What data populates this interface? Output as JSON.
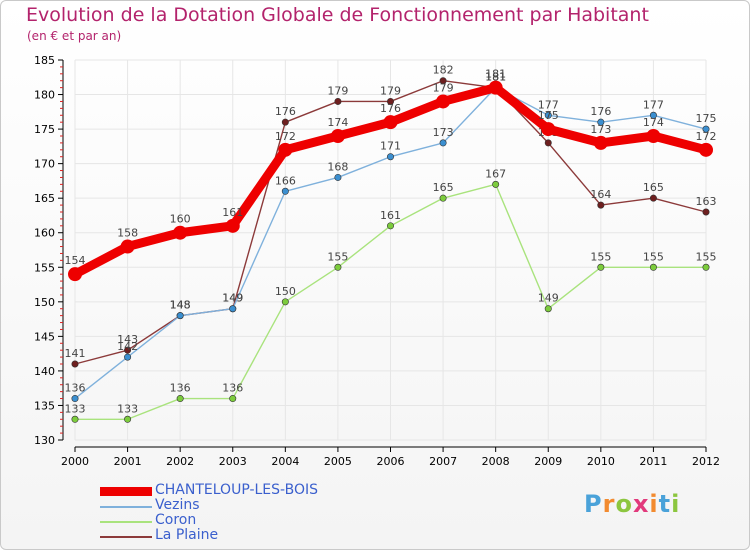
{
  "header": {
    "title": "Evolution de la Dotation Globale de Fonctionnement par Habitant",
    "subtitle": "(en € et par an)"
  },
  "logo": {
    "text": "Proxiti"
  },
  "colors": {
    "title": "#b3236c",
    "axis": "#000000",
    "grid": "#e6e6e6",
    "labels": "#444444"
  },
  "chart_data": {
    "type": "line",
    "title": "Evolution de la Dotation Globale de Fonctionnement par Habitant",
    "subtitle": "(en € et par an)",
    "x": [
      "2000",
      "2001",
      "2002",
      "2003",
      "2004",
      "2005",
      "2006",
      "2007",
      "2008",
      "2009",
      "2010",
      "2011",
      "2012"
    ],
    "ylim": [
      130,
      185
    ],
    "yticks": [
      130,
      135,
      140,
      145,
      150,
      155,
      160,
      165,
      170,
      175,
      180,
      185
    ],
    "grid": true,
    "legend_position": "bottom-left",
    "series": [
      {
        "name": "CHANTELOUP-LES-BOIS",
        "color": "#ee0000",
        "width": 9,
        "marker": 7,
        "values": [
          154,
          158,
          160,
          161,
          172,
          174,
          176,
          179,
          181,
          175,
          173,
          174,
          172
        ]
      },
      {
        "name": "Vezins",
        "color": "#7fb1dc",
        "width": 1.4,
        "marker": 3.2,
        "markerColor": "#3b8fd0",
        "values": [
          136,
          142,
          148,
          149,
          166,
          168,
          171,
          173,
          181,
          177,
          176,
          177,
          175
        ]
      },
      {
        "name": "Coron",
        "color": "#a9e37d",
        "width": 1.4,
        "marker": 3.2,
        "markerColor": "#7ccc3c",
        "values": [
          133,
          133,
          136,
          136,
          150,
          155,
          161,
          165,
          167,
          149,
          155,
          155,
          155
        ]
      },
      {
        "name": "La Plaine",
        "color": "#8c3a3a",
        "width": 1.4,
        "marker": 3.2,
        "markerColor": "#6e1f1f",
        "values": [
          141,
          143,
          148,
          149,
          176,
          179,
          179,
          182,
          181,
          173,
          164,
          165,
          163
        ]
      }
    ]
  }
}
